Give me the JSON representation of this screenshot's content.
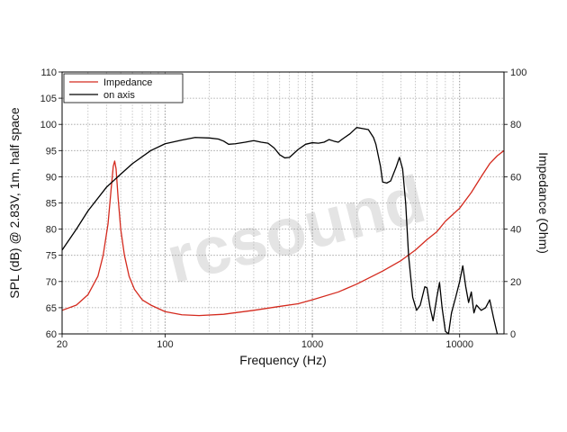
{
  "chart_data": {
    "type": "line",
    "xlabel": "Frequency (Hz)",
    "ylabel": "SPL (dB) @ 2.83V, 1m, half space",
    "y2label": "Impedance (Ohm)",
    "x_scale": "log",
    "xlim": [
      20,
      20000
    ],
    "ylim": [
      60,
      110
    ],
    "y2lim": [
      0,
      100
    ],
    "x_ticks": [
      {
        "value": 20,
        "label": "20"
      },
      {
        "value": 100,
        "label": "100"
      },
      {
        "value": 1000,
        "label": "1000"
      },
      {
        "value": 10000,
        "label": "10000"
      }
    ],
    "y_ticks": [
      60,
      65,
      70,
      75,
      80,
      85,
      90,
      95,
      100,
      105,
      110
    ],
    "y2_ticks": [
      0,
      20,
      40,
      60,
      80,
      100
    ],
    "grid": true,
    "legend": {
      "position": "top-left"
    },
    "watermark": "rcsound",
    "series": [
      {
        "name": "Impedance",
        "color": "#d42a1e",
        "axis": "right",
        "points": [
          [
            20,
            9
          ],
          [
            25,
            11
          ],
          [
            30,
            15
          ],
          [
            35,
            22
          ],
          [
            38,
            30
          ],
          [
            41,
            42
          ],
          [
            43,
            55
          ],
          [
            44.5,
            64
          ],
          [
            45.5,
            66
          ],
          [
            46.5,
            63
          ],
          [
            48,
            52
          ],
          [
            50,
            40
          ],
          [
            53,
            30
          ],
          [
            57,
            22
          ],
          [
            62,
            17
          ],
          [
            70,
            13
          ],
          [
            80,
            11
          ],
          [
            100,
            8.5
          ],
          [
            130,
            7.3
          ],
          [
            170,
            7
          ],
          [
            250,
            7.5
          ],
          [
            400,
            9
          ],
          [
            600,
            10.5
          ],
          [
            800,
            11.5
          ],
          [
            1000,
            13
          ],
          [
            1500,
            16
          ],
          [
            2000,
            19
          ],
          [
            3000,
            24
          ],
          [
            4000,
            28
          ],
          [
            5000,
            32
          ],
          [
            6000,
            36
          ],
          [
            7000,
            39
          ],
          [
            8000,
            43
          ],
          [
            10000,
            48
          ],
          [
            12000,
            54
          ],
          [
            14000,
            60
          ],
          [
            16000,
            65
          ],
          [
            18000,
            68
          ],
          [
            20000,
            70
          ]
        ]
      },
      {
        "name": "on axis",
        "color": "#000000",
        "axis": "left",
        "points": [
          [
            20,
            76
          ],
          [
            25,
            80
          ],
          [
            30,
            83.5
          ],
          [
            40,
            88
          ],
          [
            50,
            90.5
          ],
          [
            60,
            92.5
          ],
          [
            80,
            95
          ],
          [
            100,
            96.3
          ],
          [
            130,
            97
          ],
          [
            160,
            97.5
          ],
          [
            200,
            97.4
          ],
          [
            230,
            97.2
          ],
          [
            250,
            96.8
          ],
          [
            270,
            96.2
          ],
          [
            300,
            96.3
          ],
          [
            350,
            96.6
          ],
          [
            400,
            96.9
          ],
          [
            450,
            96.6
          ],
          [
            500,
            96.4
          ],
          [
            550,
            95.5
          ],
          [
            600,
            94.2
          ],
          [
            650,
            93.6
          ],
          [
            700,
            93.7
          ],
          [
            800,
            95.2
          ],
          [
            900,
            96.2
          ],
          [
            1000,
            96.5
          ],
          [
            1100,
            96.4
          ],
          [
            1200,
            96.6
          ],
          [
            1300,
            97.1
          ],
          [
            1400,
            96.8
          ],
          [
            1500,
            96.6
          ],
          [
            1600,
            97.2
          ],
          [
            1800,
            98.2
          ],
          [
            2000,
            99.4
          ],
          [
            2200,
            99.2
          ],
          [
            2400,
            99
          ],
          [
            2600,
            97.5
          ],
          [
            2700,
            96.2
          ],
          [
            2900,
            92
          ],
          [
            3000,
            89
          ],
          [
            3200,
            88.8
          ],
          [
            3400,
            89.2
          ],
          [
            3700,
            91.8
          ],
          [
            3900,
            93.7
          ],
          [
            4100,
            91.5
          ],
          [
            4300,
            85
          ],
          [
            4500,
            75
          ],
          [
            4800,
            67
          ],
          [
            5100,
            64.5
          ],
          [
            5400,
            65.5
          ],
          [
            5800,
            69
          ],
          [
            6000,
            68.8
          ],
          [
            6300,
            65
          ],
          [
            6600,
            62.5
          ],
          [
            7000,
            67
          ],
          [
            7300,
            69.8
          ],
          [
            7600,
            65
          ],
          [
            8000,
            60.5
          ],
          [
            8400,
            60
          ],
          [
            8800,
            64
          ],
          [
            9400,
            67
          ],
          [
            10000,
            70
          ],
          [
            10500,
            73
          ],
          [
            11000,
            69
          ],
          [
            11500,
            66
          ],
          [
            12000,
            68
          ],
          [
            12500,
            64
          ],
          [
            13000,
            65.5
          ],
          [
            14000,
            64.5
          ],
          [
            15000,
            65
          ],
          [
            16000,
            66.5
          ],
          [
            17000,
            63
          ],
          [
            18000,
            60
          ]
        ]
      }
    ]
  }
}
